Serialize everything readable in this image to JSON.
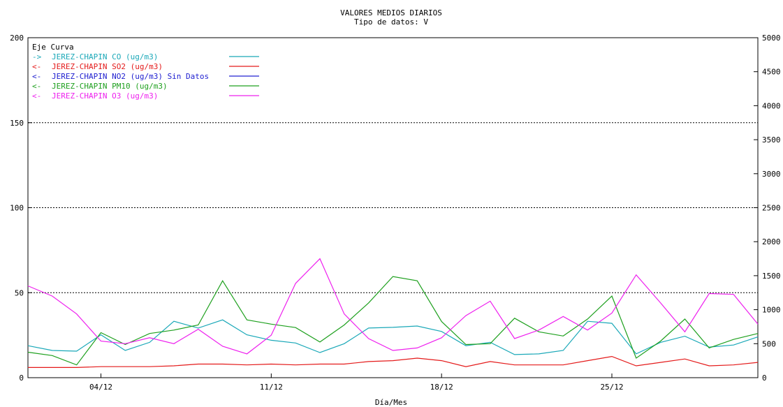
{
  "chart_data": {
    "type": "line",
    "title": "VALORES MEDIOS DIARIOS",
    "subtitle": "Tipo de datos:  V",
    "xlabel": "Día/Mes",
    "y_left": {
      "ticks": [
        0,
        50,
        100,
        150,
        200
      ],
      "ylim": [
        0,
        200
      ]
    },
    "y_right": {
      "ticks": [
        0,
        500,
        1000,
        1500,
        2000,
        2500,
        3000,
        3500,
        4000,
        4500,
        5000
      ],
      "ylim": [
        0,
        5000
      ]
    },
    "x_ticks": [
      {
        "day": 4,
        "label": "04/12"
      },
      {
        "day": 11,
        "label": "11/12"
      },
      {
        "day": 18,
        "label": "18/12"
      },
      {
        "day": 25,
        "label": "25/12"
      }
    ],
    "x_range": [
      1,
      31
    ],
    "grid": "horizontal dotted at 50, 100, 150",
    "legend": {
      "header": "Eje Curva",
      "entries": [
        {
          "arrow": "->",
          "text": "JEREZ-CHAPIN CO  (ug/m3)",
          "color": "#1aa8b8"
        },
        {
          "arrow": "<-",
          "text": "JEREZ-CHAPIN SO2  (ug/m3)",
          "color": "#e41a1a"
        },
        {
          "arrow": "<-",
          "text": "JEREZ-CHAPIN NO2  (ug/m3) Sin Datos",
          "color": "#2020d0"
        },
        {
          "arrow": "<-",
          "text": "JEREZ-CHAPIN PM10  (ug/m3)",
          "color": "#1ea01e"
        },
        {
          "arrow": "<-",
          "text": "JEREZ-CHAPIN O3  (ug/m3)",
          "color": "#ee20ee"
        }
      ]
    },
    "x": [
      1,
      2,
      3,
      4,
      5,
      6,
      7,
      8,
      9,
      10,
      11,
      12,
      13,
      14,
      15,
      16,
      17,
      18,
      19,
      20,
      21,
      22,
      23,
      24,
      25,
      26,
      27,
      28,
      29,
      30,
      31
    ],
    "series": [
      {
        "name": "JEREZ-CHAPIN CO  (ug/m3)",
        "axis": "right",
        "color": "#1aa8b8",
        "values": [
          470,
          400,
          390,
          630,
          400,
          520,
          830,
          730,
          850,
          630,
          550,
          510,
          370,
          500,
          730,
          740,
          760,
          680,
          470,
          520,
          340,
          350,
          400,
          830,
          800,
          350,
          520,
          610,
          450,
          480,
          600
        ]
      },
      {
        "name": "JEREZ-CHAPIN SO2  (ug/m3)",
        "axis": "left",
        "color": "#e41a1a",
        "values": [
          6,
          6,
          6,
          6.5,
          6.5,
          6.5,
          7,
          8,
          8,
          7.5,
          8,
          7.5,
          8,
          8,
          9.5,
          10,
          11.5,
          10,
          6.5,
          9.5,
          7.5,
          7.5,
          7.5,
          10,
          12.5,
          7,
          9,
          11,
          7,
          7.5,
          9
        ]
      },
      {
        "name": "JEREZ-CHAPIN PM10  (ug/m3)",
        "axis": "left",
        "color": "#1ea01e",
        "values": [
          15,
          13,
          7.5,
          26.5,
          19.5,
          26,
          28,
          31,
          57,
          34,
          31.5,
          29.5,
          21,
          31,
          44,
          59.5,
          57,
          33,
          19.5,
          20,
          35,
          27,
          24.5,
          34.5,
          48,
          11.5,
          21.5,
          34.5,
          17.5,
          22.5,
          26
        ]
      },
      {
        "name": "JEREZ-CHAPIN O3  (ug/m3)",
        "axis": "left",
        "color": "#ee20ee",
        "values": [
          54,
          48,
          37.5,
          21.5,
          20,
          23.5,
          20,
          28.5,
          18.5,
          14,
          25,
          55.5,
          70,
          37.5,
          23,
          16,
          17.5,
          23.5,
          36.5,
          45,
          23,
          28,
          36,
          28,
          38,
          60.5,
          44,
          27,
          49.5,
          49,
          31.5
        ]
      }
    ]
  }
}
